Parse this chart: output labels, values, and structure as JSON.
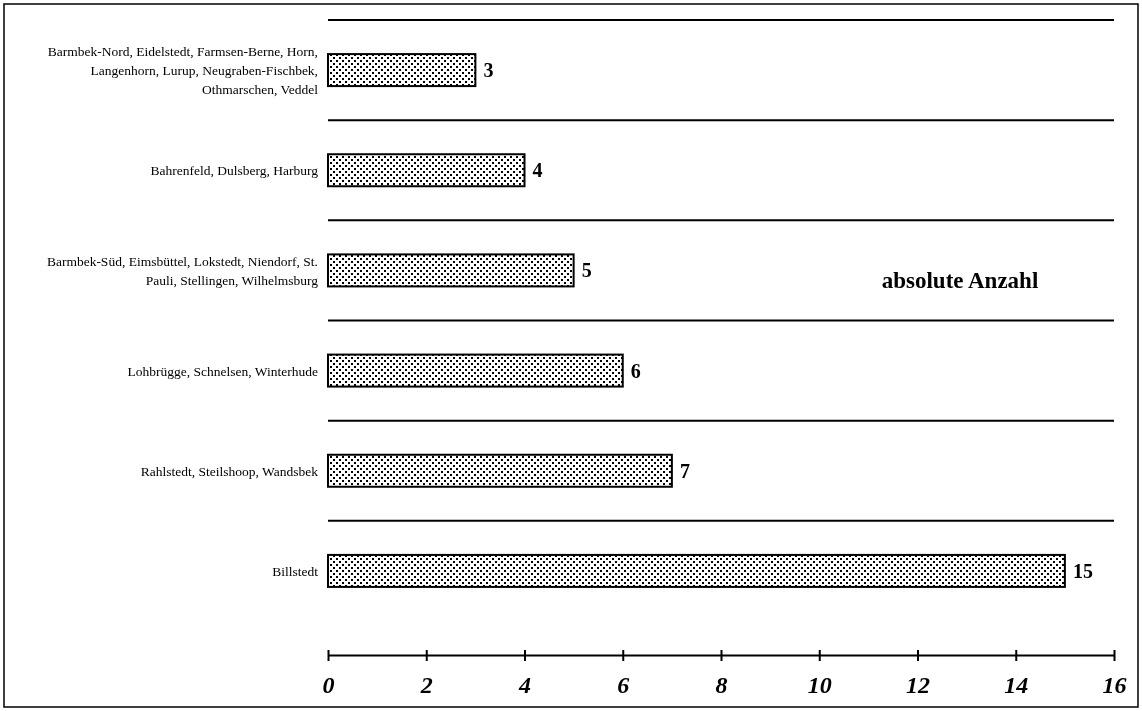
{
  "chart_data": {
    "type": "bar",
    "orientation": "horizontal",
    "categories": [
      "Barmbek-Nord, Eidelstedt, Farmsen-Berne, Horn, Langenhorn, Lurup, Neugraben-Fischbek, Othmarschen, Veddel",
      "Bahrenfeld, Dulsberg, Harburg",
      "Barmbek-Süd, Eimsbüttel, Lokstedt, Niendorf, St. Pauli, Stellingen, Wilhelmsburg",
      "Lohbrügge, Schnelsen, Winterhude",
      "Rahlstedt, Steilshoop, Wandsbek",
      "Billstedt"
    ],
    "values": [
      3,
      4,
      5,
      6,
      7,
      15
    ],
    "color": "#000000",
    "xlim": [
      0,
      16
    ],
    "xticks": [
      0,
      2,
      4,
      6,
      8,
      10,
      12,
      14,
      16
    ],
    "grid": "y",
    "data_labels": true,
    "annotations": [
      "absolute Anzahl"
    ]
  }
}
